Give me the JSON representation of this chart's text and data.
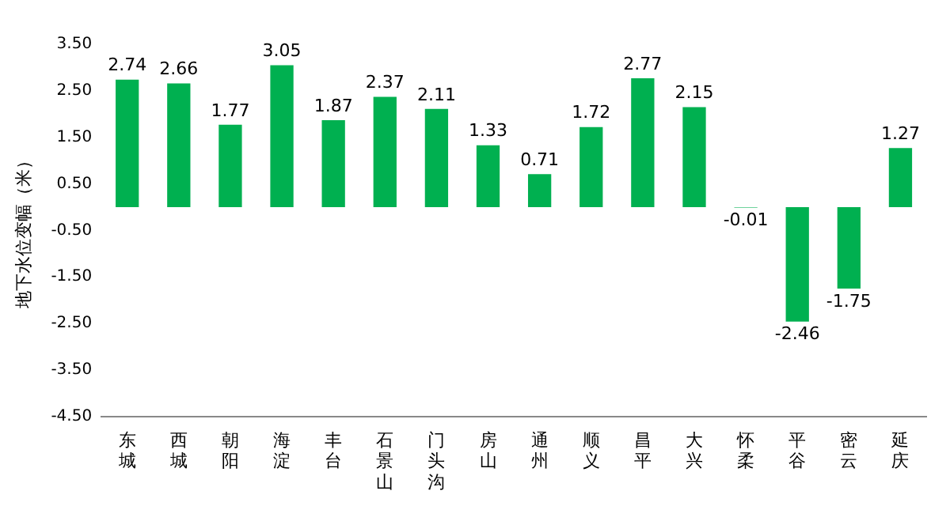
{
  "chart_data": {
    "type": "bar",
    "ylabel": "地下水位变幅（米）",
    "categories": [
      "东城",
      "西城",
      "朝阳",
      "海淀",
      "丰台",
      "石景山",
      "门头沟",
      "房山",
      "通州",
      "顺义",
      "昌平",
      "大兴",
      "怀柔",
      "平谷",
      "密云",
      "延庆"
    ],
    "values": [
      2.74,
      2.66,
      1.77,
      3.05,
      1.87,
      2.37,
      2.11,
      1.33,
      0.71,
      1.72,
      2.77,
      2.15,
      -0.01,
      -2.46,
      -1.75,
      1.27
    ],
    "color": "#00b050",
    "ylim": [
      -4.5,
      3.5
    ],
    "yticks": [
      {
        "value": -4.5,
        "label": "-4.50"
      },
      {
        "value": -3.5,
        "label": "-3.50"
      },
      {
        "value": -2.5,
        "label": "-2.50"
      },
      {
        "value": -1.5,
        "label": "-1.50"
      },
      {
        "value": -0.5,
        "label": "-0.50"
      },
      {
        "value": 0.5,
        "label": "0.50"
      },
      {
        "value": 1.5,
        "label": "1.50"
      },
      {
        "value": 2.5,
        "label": "2.50"
      },
      {
        "value": 3.5,
        "label": "3.50"
      }
    ],
    "grid": false,
    "legend": false,
    "data_labels": true
  }
}
